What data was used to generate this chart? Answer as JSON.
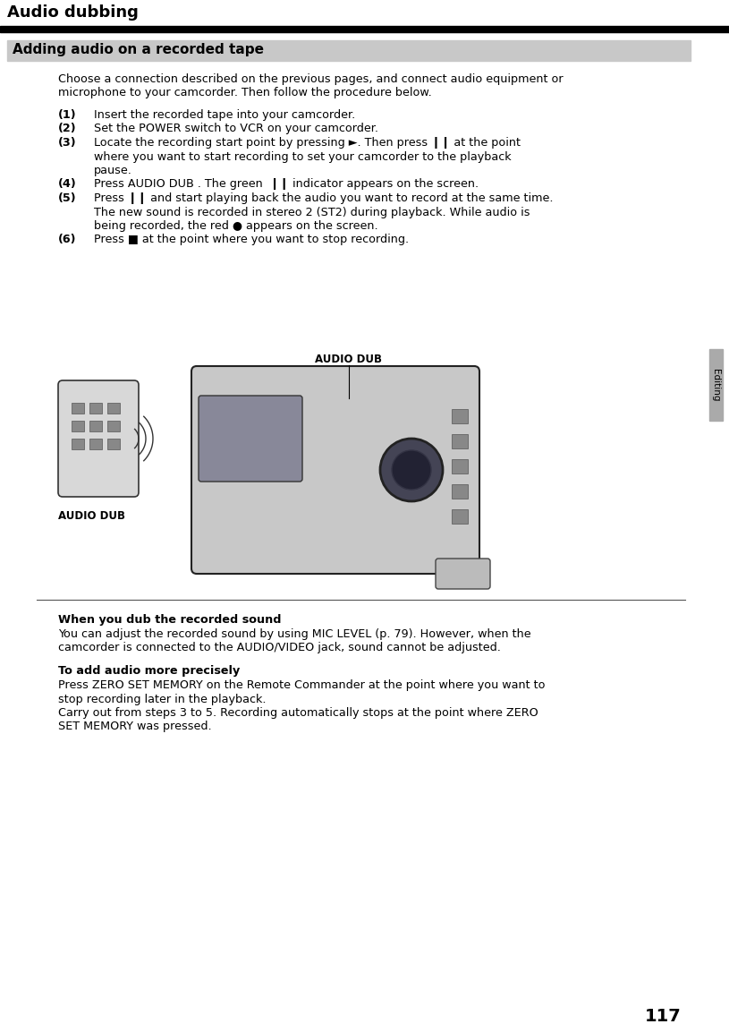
{
  "page_number": "117",
  "title": "Audio dubbing",
  "section_header": "Adding audio on a recorded tape",
  "section_header_bg": "#cccccc",
  "sidebar_label": "Editing",
  "intro_line1": "Choose a connection described on the previous pages, and connect audio equipment or",
  "intro_line2": "microphone to your camcorder. Then follow the procedure below.",
  "step1_num": "(1)",
  "step1_text": "Insert the recorded tape into your camcorder.",
  "step2_num": "(2)",
  "step2_text": "Set the POWER switch to VCR on your camcorder.",
  "step3_num": "(3)",
  "step3_line1": "Locate the recording start point by pressing ►. Then press ❙❙ at the point",
  "step3_line2": "where you want to start recording to set your camcorder to the playback",
  "step3_line3": "pause.",
  "step4_num": "(4)",
  "step4_text": "Press AUDIO DUB . The green  ❙❙ indicator appears on the screen.",
  "step5_num": "(5)",
  "step5_line1": "Press ❙❙ and start playing back the audio you want to record at the same time.",
  "step5_line2": "The new sound is recorded in stereo 2 (ST2) during playback. While audio is",
  "step5_line3": "being recorded, the red ● appears on the screen.",
  "step6_num": "(6)",
  "step6_text": "Press ■ at the point where you want to stop recording.",
  "when_header": "When you dub the recorded sound",
  "when_line1": "You can adjust the recorded sound by using MIC LEVEL (p. 79). However, when the",
  "when_line2": "camcorder is connected to the AUDIO/VIDEO jack, sound cannot be adjusted.",
  "to_add_header": "To add audio more precisely",
  "to_add_line1": "Press ZERO SET MEMORY on the Remote Commander at the point where you want to",
  "to_add_line2": "stop recording later in the playback.",
  "to_add_line3": "Carry out from steps 3 to 5. Recording automatically stops at the point where ZERO",
  "to_add_line4": "SET MEMORY was pressed.",
  "label_audio_dub_top": "AUDIO DUB",
  "label_audio_dub_left": "AUDIO DUB",
  "bg_color": "#ffffff"
}
